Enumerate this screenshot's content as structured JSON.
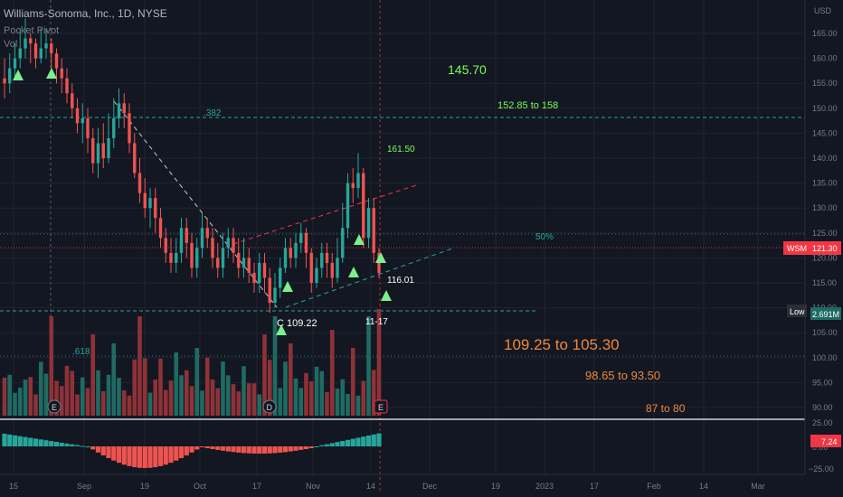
{
  "header": {
    "title": "Williams-Sonoma, Inc., 1D, NYSE",
    "indicator_1": "Pocket Pivot",
    "indicator_2": "Vol"
  },
  "price_axis": {
    "unit": "USD",
    "ticks": [
      "165.00",
      "160.00",
      "155.00",
      "150.00",
      "145.00",
      "140.00",
      "135.00",
      "130.00",
      "125.00",
      "120.00",
      "115.00",
      "110.00",
      "105.00",
      "100.00",
      "95.00",
      "90.00"
    ],
    "symbol_tag": "WSM",
    "last_price": "121.30",
    "low_tag": "Low",
    "low_value": "2.691M"
  },
  "osc_axis": {
    "ticks": [
      "25.00",
      "0.00",
      "−25.00"
    ],
    "value": "7.24"
  },
  "time_axis": {
    "ticks": [
      "15",
      "Sep",
      "19",
      "Oct",
      "17",
      "Nov",
      "14",
      "Dec",
      "19",
      "2023",
      "17",
      "Feb",
      "14",
      "Mar"
    ]
  },
  "annotations": {
    "target_main": "145.70",
    "fib_382": ".382",
    "fib_618": ".618",
    "fib_50": "50%",
    "range_high": "152.85 to 158",
    "peak_label": "161.50",
    "low_price": "116.01",
    "point_c": "C 109.22",
    "date_mark": "11-17",
    "zone_1": "109.25 to 105.30",
    "zone_2": "98.65 to 93.50",
    "zone_3": "87 to 80"
  },
  "events": {
    "earnings_1": "E",
    "dividend": "D",
    "earnings_2": "E"
  },
  "colors": {
    "background": "#131722",
    "up": "#26a69a",
    "down": "#ef5350",
    "vol_up": "#1e6b63",
    "vol_down": "#8e3237",
    "pivot": "#7cf08a",
    "fib_line": "#26a69a",
    "orange_text": "#f0873a",
    "green_text": "#7cfc5a",
    "last_price_tag": "#f23645"
  },
  "chart_data": {
    "type": "candlestick",
    "symbol": "WSM",
    "timeframe": "1D",
    "exchange": "NYSE",
    "yrange": [
      88,
      168
    ],
    "candles": [
      [
        156,
        155,
        160,
        152
      ],
      [
        155,
        158,
        161,
        153
      ],
      [
        158,
        160,
        163,
        156
      ],
      [
        160,
        162,
        166,
        158
      ],
      [
        162,
        164,
        168,
        160
      ],
      [
        164,
        163,
        165,
        159
      ],
      [
        163,
        160,
        164,
        158
      ],
      [
        160,
        162,
        166,
        159
      ],
      [
        162,
        163,
        166,
        160
      ],
      [
        163,
        161,
        164,
        156
      ],
      [
        161,
        158,
        162,
        155
      ],
      [
        158,
        156,
        160,
        153
      ],
      [
        156,
        153,
        158,
        151
      ],
      [
        153,
        150,
        155,
        148
      ],
      [
        150,
        147,
        152,
        145
      ],
      [
        147,
        148,
        151,
        143
      ],
      [
        148,
        144,
        150,
        141
      ],
      [
        144,
        139,
        146,
        137
      ],
      [
        139,
        143,
        146,
        136
      ],
      [
        143,
        140,
        147,
        138
      ],
      [
        140,
        144,
        149,
        139
      ],
      [
        144,
        148,
        152,
        142
      ],
      [
        148,
        151,
        154,
        146
      ],
      [
        151,
        149,
        153,
        146
      ],
      [
        149,
        143,
        151,
        141
      ],
      [
        143,
        137,
        145,
        136
      ],
      [
        137,
        133,
        140,
        131
      ],
      [
        133,
        130,
        136,
        128
      ],
      [
        130,
        132,
        134,
        126
      ],
      [
        132,
        128,
        134,
        125
      ],
      [
        128,
        124,
        130,
        122
      ],
      [
        124,
        121,
        126,
        119
      ],
      [
        121,
        119,
        124,
        117
      ],
      [
        119,
        121,
        124,
        117
      ],
      [
        121,
        126,
        128,
        119
      ],
      [
        126,
        123,
        128,
        120
      ],
      [
        123,
        118,
        125,
        116
      ],
      [
        118,
        122,
        124,
        116
      ],
      [
        122,
        126,
        129,
        120
      ],
      [
        126,
        124,
        128,
        122
      ],
      [
        124,
        120,
        126,
        118
      ],
      [
        120,
        118,
        123,
        116
      ],
      [
        118,
        122,
        125,
        116
      ],
      [
        122,
        124,
        126,
        120
      ],
      [
        124,
        121,
        126,
        119
      ],
      [
        121,
        118,
        124,
        116
      ],
      [
        118,
        120,
        124,
        116
      ],
      [
        120,
        117,
        122,
        115
      ],
      [
        117,
        115,
        119,
        113
      ],
      [
        115,
        119,
        121,
        113
      ],
      [
        119,
        116,
        121,
        113
      ],
      [
        116,
        111,
        118,
        109
      ],
      [
        111,
        114,
        117,
        110
      ],
      [
        114,
        118,
        120,
        112
      ],
      [
        118,
        122,
        124,
        117
      ],
      [
        122,
        120,
        124,
        118
      ],
      [
        120,
        123,
        125,
        118
      ],
      [
        123,
        125,
        127,
        121
      ],
      [
        125,
        121,
        126,
        118
      ],
      [
        121,
        115,
        122,
        113
      ],
      [
        115,
        118,
        120,
        114
      ],
      [
        118,
        121,
        123,
        116
      ],
      [
        121,
        119,
        123,
        116
      ],
      [
        119,
        116,
        121,
        114
      ],
      [
        116,
        120,
        124,
        115
      ],
      [
        120,
        126,
        131,
        119
      ],
      [
        126,
        135,
        137,
        124
      ],
      [
        135,
        134,
        138,
        131
      ],
      [
        134,
        137,
        141,
        132
      ],
      [
        137,
        124,
        138,
        122
      ],
      [
        124,
        130,
        132,
        122
      ],
      [
        130,
        121,
        132,
        119
      ],
      [
        121,
        117,
        122,
        116
      ]
    ],
    "volume_top_range": [
      0,
      5
    ],
    "pivots": {
      "below_bar": [
        0,
        11,
        69,
        72
      ],
      "above_bar_inline": [
        48,
        64
      ]
    },
    "levels": {
      "fib_382": 148.0,
      "fib_50": 125.0,
      "low": 109.22,
      "target": 145.7
    }
  }
}
